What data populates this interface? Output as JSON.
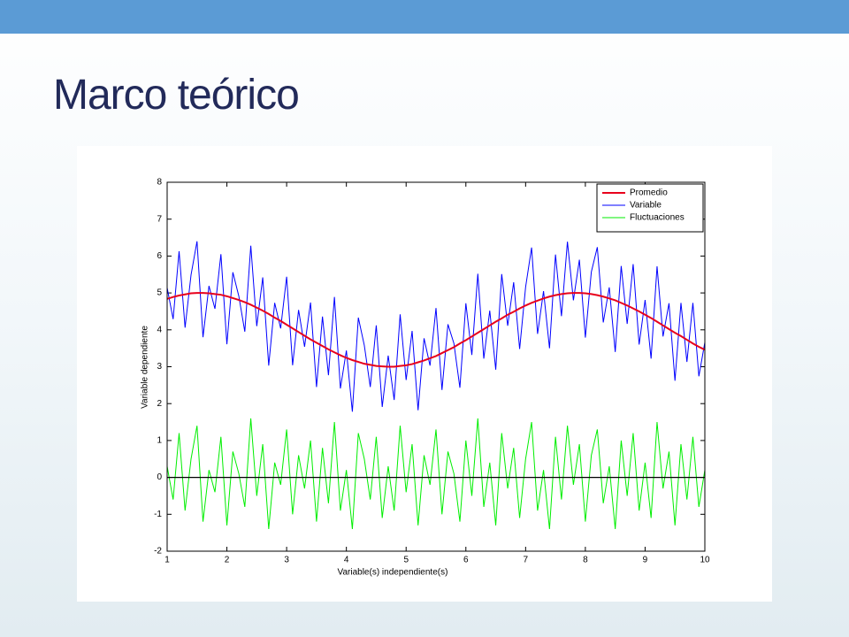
{
  "title": "Marco teórico",
  "chart_data": {
    "type": "line",
    "xlabel": "Variable(s) independiente(s)",
    "ylabel": "Variable dependiente",
    "x": [
      1,
      1.1,
      1.2,
      1.3,
      1.4,
      1.5,
      1.6,
      1.7,
      1.8,
      1.9,
      2,
      2.1,
      2.2,
      2.3,
      2.4,
      2.5,
      2.6,
      2.7,
      2.8,
      2.9,
      3,
      3.1,
      3.2,
      3.3,
      3.4,
      3.5,
      3.6,
      3.7,
      3.8,
      3.9,
      4,
      4.1,
      4.2,
      4.3,
      4.4,
      4.5,
      4.6,
      4.7,
      4.8,
      4.9,
      5,
      5.1,
      5.2,
      5.3,
      5.4,
      5.5,
      5.6,
      5.7,
      5.8,
      5.9,
      6,
      6.1,
      6.2,
      6.3,
      6.4,
      6.5,
      6.6,
      6.7,
      6.8,
      6.9,
      7,
      7.1,
      7.2,
      7.3,
      7.4,
      7.5,
      7.6,
      7.7,
      7.8,
      7.9,
      8,
      8.1,
      8.2,
      8.3,
      8.4,
      8.5,
      8.6,
      8.7,
      8.8,
      8.9,
      9,
      9.1,
      9.2,
      9.3,
      9.4,
      9.5,
      9.6,
      9.7,
      9.8,
      9.9,
      10
    ],
    "series": [
      {
        "name": "Promedio",
        "color": "#e8001c",
        "width": 2,
        "values": [
          4.84,
          4.89,
          4.93,
          4.96,
          4.99,
          5.0,
          5.0,
          4.99,
          4.97,
          4.95,
          4.91,
          4.86,
          4.81,
          4.75,
          4.68,
          4.6,
          4.52,
          4.43,
          4.33,
          4.24,
          4.14,
          4.04,
          3.94,
          3.84,
          3.74,
          3.65,
          3.56,
          3.47,
          3.39,
          3.31,
          3.24,
          3.18,
          3.13,
          3.08,
          3.05,
          3.02,
          3.01,
          3.0,
          3.0,
          3.02,
          3.04,
          3.07,
          3.12,
          3.17,
          3.23,
          3.29,
          3.37,
          3.45,
          3.53,
          3.63,
          3.72,
          3.82,
          3.92,
          4.02,
          4.12,
          4.22,
          4.31,
          4.41,
          4.49,
          4.58,
          4.66,
          4.73,
          4.79,
          4.85,
          4.9,
          4.94,
          4.97,
          4.99,
          5.0,
          5.0,
          4.99,
          4.97,
          4.94,
          4.9,
          4.85,
          4.8,
          4.73,
          4.66,
          4.58,
          4.5,
          4.41,
          4.32,
          4.22,
          4.12,
          4.02,
          3.92,
          3.83,
          3.73,
          3.63,
          3.54,
          3.46
        ]
      },
      {
        "name": "Variable",
        "color": "#0000ff",
        "width": 1,
        "values": [
          5.14,
          4.29,
          6.13,
          4.06,
          5.49,
          6.4,
          3.8,
          5.19,
          4.57,
          6.05,
          3.61,
          5.56,
          4.91,
          3.95,
          6.28,
          4.1,
          5.42,
          3.03,
          4.73,
          4.04,
          5.44,
          3.04,
          4.54,
          3.54,
          4.74,
          2.45,
          4.36,
          2.77,
          4.89,
          2.41,
          3.44,
          1.78,
          4.33,
          3.58,
          2.45,
          4.12,
          1.91,
          3.3,
          2.1,
          4.42,
          2.64,
          3.97,
          1.82,
          3.77,
          3.03,
          4.59,
          2.37,
          4.15,
          3.63,
          2.43,
          4.72,
          3.32,
          5.52,
          3.22,
          4.52,
          2.92,
          5.51,
          4.11,
          5.29,
          3.48,
          5.16,
          6.23,
          3.89,
          5.05,
          3.5,
          6.04,
          4.37,
          6.39,
          4.8,
          5.9,
          3.79,
          5.57,
          6.24,
          4.2,
          5.15,
          3.4,
          5.73,
          4.16,
          5.78,
          3.6,
          4.81,
          3.22,
          5.72,
          3.82,
          4.72,
          2.62,
          4.73,
          3.13,
          4.73,
          2.74,
          3.66
        ]
      },
      {
        "name": "Fluctuaciones",
        "color": "#00ee00",
        "width": 1,
        "values": [
          0.3,
          -0.6,
          1.2,
          -0.9,
          0.5,
          1.4,
          -1.2,
          0.2,
          -0.4,
          1.1,
          -1.3,
          0.7,
          0.1,
          -0.8,
          1.6,
          -0.5,
          0.9,
          -1.4,
          0.4,
          -0.2,
          1.3,
          -1.0,
          0.6,
          -0.3,
          1.0,
          -1.2,
          0.8,
          -0.7,
          1.5,
          -0.9,
          0.2,
          -1.4,
          1.2,
          0.5,
          -0.6,
          1.1,
          -1.1,
          0.3,
          -0.9,
          1.4,
          -0.4,
          0.9,
          -1.3,
          0.6,
          -0.2,
          1.3,
          -1.0,
          0.7,
          0.1,
          -1.2,
          1.0,
          -0.5,
          1.6,
          -0.8,
          0.4,
          -1.3,
          1.2,
          -0.3,
          0.8,
          -1.1,
          0.5,
          1.5,
          -0.9,
          0.2,
          -1.4,
          1.1,
          -0.6,
          1.4,
          -0.2,
          0.9,
          -1.2,
          0.6,
          1.3,
          -0.7,
          0.3,
          -1.4,
          1.0,
          -0.5,
          1.2,
          -0.9,
          0.4,
          -1.1,
          1.5,
          -0.3,
          0.7,
          -1.3,
          0.9,
          -0.6,
          1.1,
          -0.8,
          0.2
        ]
      }
    ],
    "hline": 0,
    "hline_color": "#000000",
    "xlim": [
      1,
      10
    ],
    "xticks": [
      1,
      2,
      3,
      4,
      5,
      6,
      7,
      8,
      9,
      10
    ],
    "ylim": [
      -2,
      8
    ],
    "yticks": [
      -2,
      -1,
      0,
      1,
      2,
      3,
      4,
      5,
      6,
      7,
      8
    ],
    "grid": false,
    "legend": "northeast"
  }
}
